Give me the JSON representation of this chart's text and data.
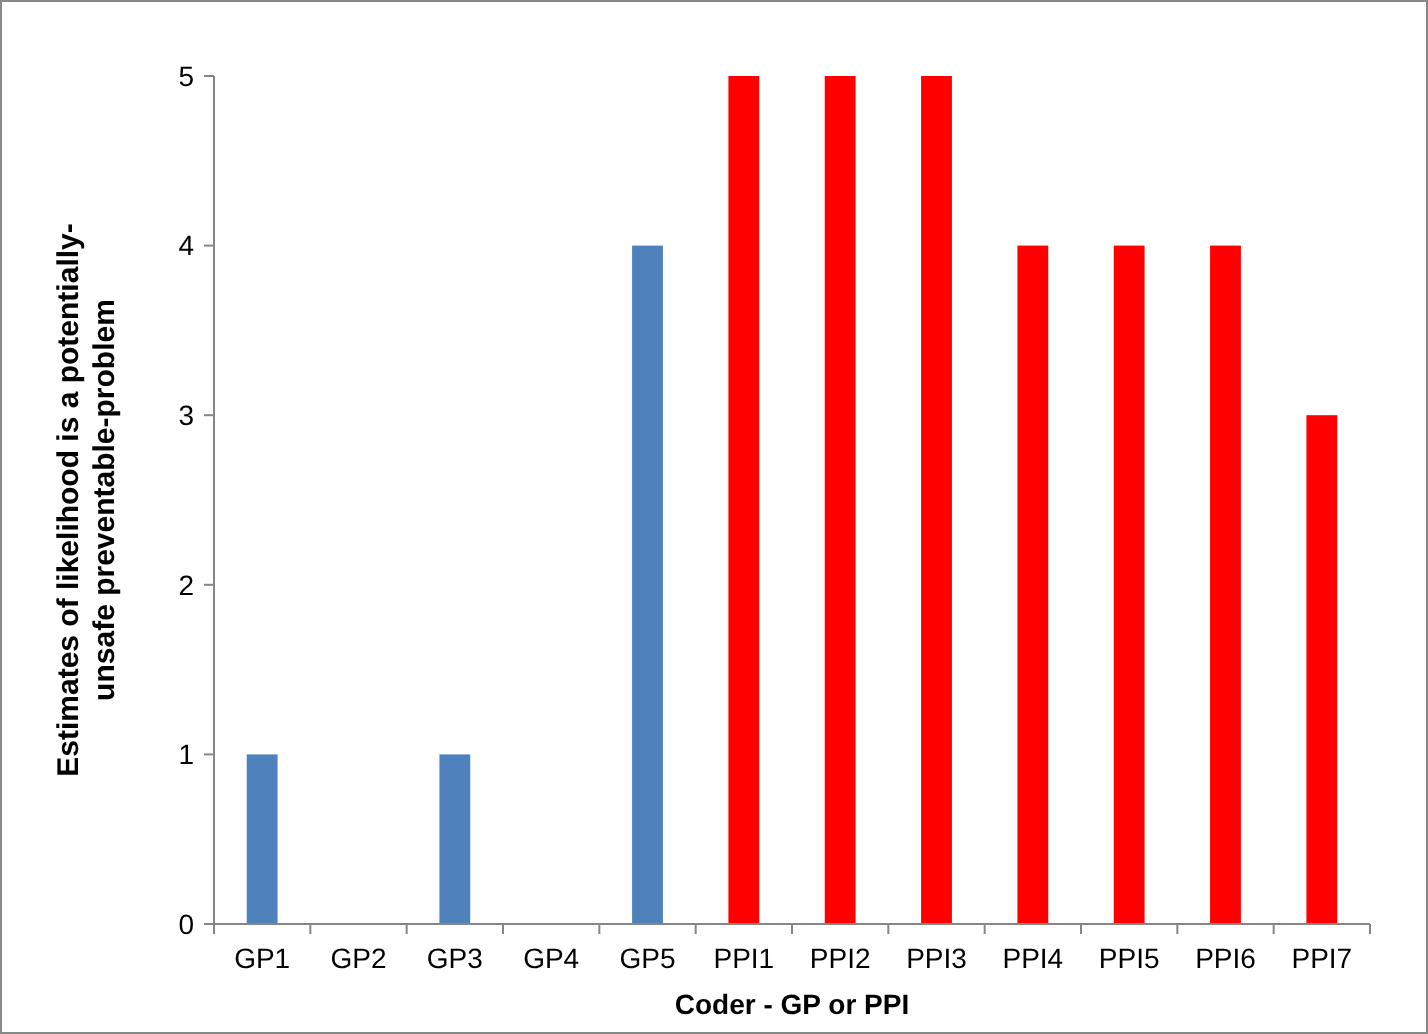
{
  "chart_data": {
    "type": "bar",
    "xlabel": "Coder - GP or PPI",
    "ylabel": "Estimates of likelihood is a potentially-unsafe preventable-problem",
    "categories": [
      "GP1",
      "GP2",
      "GP3",
      "GP4",
      "GP5",
      "PPI1",
      "PPI2",
      "PPI3",
      "PPI4",
      "PPI5",
      "PPI6",
      "PPI7"
    ],
    "values": [
      1,
      0,
      1,
      0,
      4,
      5,
      5,
      5,
      4,
      4,
      4,
      3
    ],
    "colors": [
      "#4f81bd",
      "#4f81bd",
      "#4f81bd",
      "#4f81bd",
      "#4f81bd",
      "#ff0000",
      "#ff0000",
      "#ff0000",
      "#ff0000",
      "#ff0000",
      "#ff0000",
      "#ff0000"
    ],
    "ylim": [
      0,
      5
    ],
    "yticks": [
      0,
      1,
      2,
      3,
      4,
      5
    ],
    "grid": false
  }
}
